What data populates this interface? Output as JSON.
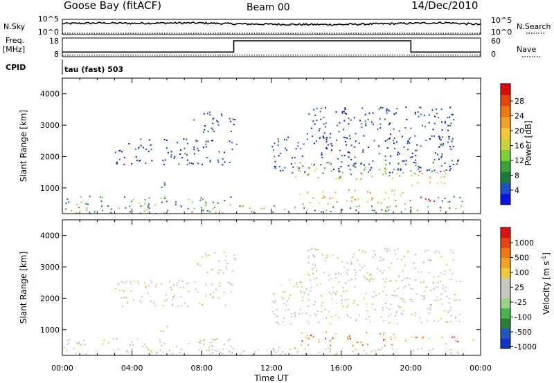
{
  "header": {
    "station": "Goose Bay (fitACF)",
    "beam": "Beam 00",
    "date": "14/Dec/2010"
  },
  "labels": {
    "nsky": "N.Sky",
    "nsearch": "N.Search",
    "freq": "Freq.",
    "freq_unit": "[MHz]",
    "nave": "Nave",
    "cpid": "CPID",
    "cpid_value": "tau (fast) 503",
    "x_label": "Time UT",
    "y_label": "Slant Range [km]",
    "power_label": "Power [dB]",
    "velocity_label_main": "Velocity [m s",
    "velocity_label_sup": "-1",
    "velocity_label_end": "]"
  },
  "chart_data": [
    {
      "type": "line",
      "name": "noise",
      "left_ticks": [
        "10^5",
        "10^0"
      ],
      "right_ticks": [
        "10^5",
        "10^0"
      ],
      "x": [
        "00:00",
        "02:00",
        "04:00",
        "06:00",
        "08:00",
        "10:00",
        "12:00",
        "14:00",
        "16:00",
        "18:00",
        "20:00",
        "22:00",
        "24:00"
      ],
      "series": [
        {
          "name": "N.Sky",
          "values": [
            3.6,
            3.8,
            3.7,
            3.8,
            3.8,
            3.5,
            3.4,
            3.3,
            3.3,
            3.5,
            3.7,
            3.9,
            3.3
          ]
        },
        {
          "name": "N.Search",
          "values": [
            0.2,
            0.2,
            0.2,
            0.2,
            0.2,
            0.2,
            0.2,
            0.2,
            0.2,
            0.2,
            0.2,
            0.2,
            0.2
          ]
        }
      ]
    },
    {
      "type": "line",
      "name": "frequency",
      "left_ticks": [
        "18",
        "8"
      ],
      "right_ticks": [
        "60",
        "0"
      ],
      "series": [
        {
          "name": "Freq.",
          "x": [
            "00:00",
            "09:50",
            "09:50",
            "20:00",
            "20:00",
            "24:00"
          ],
          "values": [
            10.5,
            10.5,
            16.5,
            16.5,
            10.5,
            10.5
          ]
        },
        {
          "name": "Nave",
          "x": [
            "00:00",
            "24:00"
          ],
          "values": [
            5,
            5
          ]
        }
      ]
    },
    {
      "type": "heatmap",
      "name": "power",
      "xlabel": "Time UT",
      "ylabel": "Slant Range [km]",
      "ylim": [
        180,
        4500
      ],
      "x_ticks": [
        "00:00",
        "04:00",
        "08:00",
        "12:00",
        "16:00",
        "20:00",
        "00:00"
      ],
      "y_ticks": [
        1000,
        2000,
        3000,
        4000
      ],
      "colorbar": {
        "label": "Power [dB]",
        "ticks": [
          "4",
          "8",
          "12",
          "16",
          "20",
          "24",
          "28"
        ],
        "colors": [
          "#0a14e6",
          "#1f50c8",
          "#1e7a3c",
          "#3aa23a",
          "#7ed03a",
          "#c8d23a",
          "#f5c83c",
          "#f5a028",
          "#f07814",
          "#e64614",
          "#dc0a0a"
        ]
      },
      "regions": [
        {
          "t0": 0.0,
          "t1": 10.0,
          "r0": 200,
          "r1": 750,
          "level": 0.3
        },
        {
          "t0": 10.0,
          "t1": 23.0,
          "r0": 200,
          "r1": 450,
          "level": 0.3
        },
        {
          "t0": 3.0,
          "t1": 10.0,
          "r0": 1750,
          "r1": 2600,
          "level": 0.1
        },
        {
          "t0": 5.5,
          "t1": 6.3,
          "r0": 950,
          "r1": 1200,
          "level": 0.1
        },
        {
          "t0": 7.5,
          "t1": 10.0,
          "r0": 2800,
          "r1": 3500,
          "level": 0.1
        },
        {
          "t0": 12.0,
          "t1": 22.8,
          "r0": 1500,
          "r1": 2650,
          "level": 0.1
        },
        {
          "t0": 13.3,
          "t1": 20.5,
          "r0": 1300,
          "r1": 1850,
          "level": 0.42
        },
        {
          "t0": 20.0,
          "t1": 22.0,
          "r0": 1050,
          "r1": 1600,
          "level": 0.62
        },
        {
          "t0": 13.5,
          "t1": 20.0,
          "r0": 500,
          "r1": 950,
          "level": 0.62
        },
        {
          "t0": 20.0,
          "t1": 21.5,
          "r0": 560,
          "r1": 780,
          "level": 0.98
        },
        {
          "t0": 21.5,
          "t1": 23.8,
          "r0": 560,
          "r1": 800,
          "level": 0.25
        },
        {
          "t0": 14.0,
          "t1": 22.5,
          "r0": 2500,
          "r1": 3600,
          "level": 0.1
        }
      ]
    },
    {
      "type": "heatmap",
      "name": "velocity",
      "xlabel": "Time UT",
      "ylabel": "Slant Range [km]",
      "ylim": [
        180,
        4500
      ],
      "x_ticks": [
        "00:00",
        "04:00",
        "08:00",
        "12:00",
        "16:00",
        "20:00",
        "00:00"
      ],
      "y_ticks": [
        1000,
        2000,
        3000,
        4000
      ],
      "colorbar": {
        "label": "Velocity [m s-1]",
        "ticks": [
          "1000",
          "500",
          "100",
          "25",
          "-25",
          "-100",
          "-500",
          "-1000"
        ],
        "colors": [
          "#1432c8",
          "#1e5ab4",
          "#2d7d3c",
          "#46b446",
          "#9bd28c",
          "#c8c8c0",
          "#c8c8c0",
          "#f0c83c",
          "#f5a028",
          "#f07814",
          "#e64614",
          "#dc1414"
        ]
      },
      "regions": [
        {
          "t0": 0.0,
          "t1": 10.0,
          "r0": 200,
          "r1": 750,
          "level": 0.5
        },
        {
          "t0": 10.0,
          "t1": 23.0,
          "r0": 200,
          "r1": 450,
          "level": 0.5
        },
        {
          "t0": 3.0,
          "t1": 10.0,
          "r0": 1750,
          "r1": 2600,
          "level": 0.5
        },
        {
          "t0": 5.5,
          "t1": 6.3,
          "r0": 950,
          "r1": 1200,
          "level": 0.5
        },
        {
          "t0": 7.5,
          "t1": 10.0,
          "r0": 2800,
          "r1": 3500,
          "level": 0.5
        },
        {
          "t0": 12.0,
          "t1": 22.8,
          "r0": 1200,
          "r1": 2650,
          "level": 0.5
        },
        {
          "t0": 13.5,
          "t1": 20.0,
          "r0": 500,
          "r1": 950,
          "level": 0.7
        },
        {
          "t0": 20.0,
          "t1": 23.8,
          "r0": 560,
          "r1": 800,
          "level": 0.7
        },
        {
          "t0": 14.0,
          "t1": 22.5,
          "r0": 2500,
          "r1": 3600,
          "level": 0.5
        }
      ]
    }
  ]
}
